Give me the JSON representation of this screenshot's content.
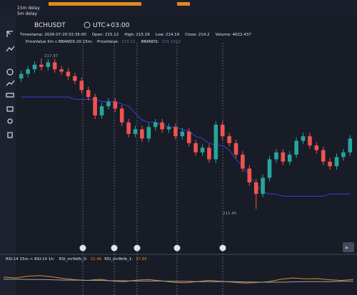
{
  "top_bar": {
    "rows": [
      "15m delay",
      "5m delay"
    ]
  },
  "header": {
    "symbol": "BCHUSDT",
    "timezone": "UTC+03:00"
  },
  "info": {
    "line1": [
      "Timestamp: 2026-07-20 02:35:00",
      "Open: 215.12",
      "High: 215.29",
      "Low: 214.19",
      "Close: 214.2",
      "Volume: 4022.437"
    ],
    "legend_name": "PriceValue 5m v BBANDS-20 15m:",
    "legend_items": [
      [
        "PriceValue:",
        "215.12"
      ],
      [
        "BBANDS:",
        "215.1012"
      ]
    ]
  },
  "price_labels": {
    "high": "217.97",
    "low": "211.45"
  },
  "candles": [
    [
      217.1,
      217.45,
      216.95,
      217.3
    ],
    [
      217.3,
      217.65,
      217.15,
      217.5
    ],
    [
      217.5,
      217.85,
      217.35,
      217.7
    ],
    [
      217.7,
      217.97,
      217.45,
      217.6
    ],
    [
      217.6,
      217.95,
      217.45,
      217.8
    ],
    [
      217.8,
      217.95,
      217.35,
      217.5
    ],
    [
      217.5,
      217.65,
      217.25,
      217.4
    ],
    [
      217.4,
      217.55,
      217.05,
      217.2
    ],
    [
      217.2,
      217.35,
      216.85,
      217.0
    ],
    [
      217.0,
      217.15,
      216.45,
      216.6
    ],
    [
      216.6,
      216.75,
      216.15,
      216.3
    ],
    [
      216.3,
      216.45,
      215.35,
      215.5
    ],
    [
      215.5,
      216.05,
      215.35,
      215.9
    ],
    [
      215.9,
      216.25,
      215.75,
      216.1
    ],
    [
      216.1,
      216.25,
      215.65,
      215.8
    ],
    [
      215.8,
      215.95,
      215.05,
      215.2
    ],
    [
      215.2,
      215.35,
      214.55,
      214.7
    ],
    [
      214.7,
      215.05,
      214.55,
      214.9
    ],
    [
      214.9,
      215.05,
      214.35,
      214.5
    ],
    [
      214.5,
      215.15,
      214.35,
      215.0
    ],
    [
      215.0,
      215.35,
      214.85,
      215.2
    ],
    [
      215.2,
      215.35,
      214.75,
      214.9
    ],
    [
      214.9,
      215.15,
      214.75,
      215.0
    ],
    [
      215.0,
      215.15,
      214.45,
      214.6
    ],
    [
      214.6,
      214.95,
      214.45,
      214.8
    ],
    [
      214.8,
      214.95,
      214.15,
      214.3
    ],
    [
      214.3,
      214.45,
      213.75,
      213.9
    ],
    [
      213.9,
      214.25,
      213.75,
      214.1
    ],
    [
      214.1,
      214.25,
      213.45,
      213.6
    ],
    [
      213.6,
      215.25,
      213.45,
      215.1
    ],
    [
      215.1,
      215.25,
      214.45,
      214.6
    ],
    [
      214.6,
      214.75,
      214.15,
      214.3
    ],
    [
      214.3,
      214.45,
      213.65,
      213.8
    ],
    [
      213.8,
      213.95,
      213.05,
      213.2
    ],
    [
      213.2,
      213.35,
      212.45,
      212.6
    ],
    [
      212.6,
      212.75,
      211.45,
      212.1
    ],
    [
      212.1,
      212.95,
      211.95,
      212.8
    ],
    [
      212.8,
      213.75,
      212.65,
      213.6
    ],
    [
      213.6,
      214.05,
      213.45,
      213.9
    ],
    [
      213.9,
      214.05,
      213.35,
      213.5
    ],
    [
      213.5,
      213.95,
      213.35,
      213.8
    ],
    [
      213.8,
      214.55,
      213.65,
      214.4
    ],
    [
      214.4,
      214.75,
      214.25,
      214.6
    ],
    [
      214.6,
      214.75,
      214.05,
      214.2
    ],
    [
      214.2,
      214.35,
      213.85,
      214.0
    ],
    [
      214.0,
      214.15,
      213.35,
      213.5
    ],
    [
      213.5,
      213.65,
      213.15,
      213.3
    ],
    [
      213.3,
      213.85,
      213.15,
      213.7
    ],
    [
      213.7,
      214.05,
      213.55,
      213.9
    ],
    [
      213.9,
      214.65,
      213.75,
      214.5
    ]
  ],
  "bbands": [
    216.3,
    216.3,
    216.3,
    216.3,
    216.3,
    216.3,
    216.3,
    216.3,
    216.2,
    216.2,
    216.2,
    216.2,
    216.1,
    216.1,
    216.1,
    216.0,
    215.9,
    215.6,
    215.3,
    215.2,
    215.2,
    215.1,
    215.0,
    215.0,
    214.9,
    214.8,
    214.6,
    214.5,
    214.3,
    214.2,
    214.2,
    214.0,
    213.6,
    213.3,
    212.9,
    212.5,
    212.2,
    212.1,
    212.1,
    212.0,
    212.0,
    212.0,
    212.0,
    212.0,
    212.0,
    212.0,
    212.1,
    212.1,
    212.1,
    212.1
  ],
  "markers": [
    116,
    160,
    192,
    248,
    312
  ],
  "rsi": {
    "title": "RSI-14 15m < RSI-14 1h:",
    "items": [
      [
        "RSI_mr9bfb_0:",
        "32.46"
      ],
      [
        "RSI_mr9bfb_1:",
        "37.85"
      ]
    ],
    "series0": [
      55,
      52,
      58,
      60,
      56,
      50,
      46,
      44,
      48,
      42,
      40,
      45,
      47,
      43,
      38,
      36,
      40,
      44,
      41,
      38,
      35,
      37,
      40,
      48,
      52,
      49,
      50,
      46,
      44,
      47
    ],
    "series1": [
      48,
      48,
      47,
      47,
      46,
      45,
      45,
      44,
      44,
      43,
      43,
      42,
      42,
      42,
      41,
      41,
      40,
      40,
      40,
      40,
      39,
      38,
      38,
      38,
      39,
      40,
      40,
      40,
      41,
      41
    ]
  }
}
